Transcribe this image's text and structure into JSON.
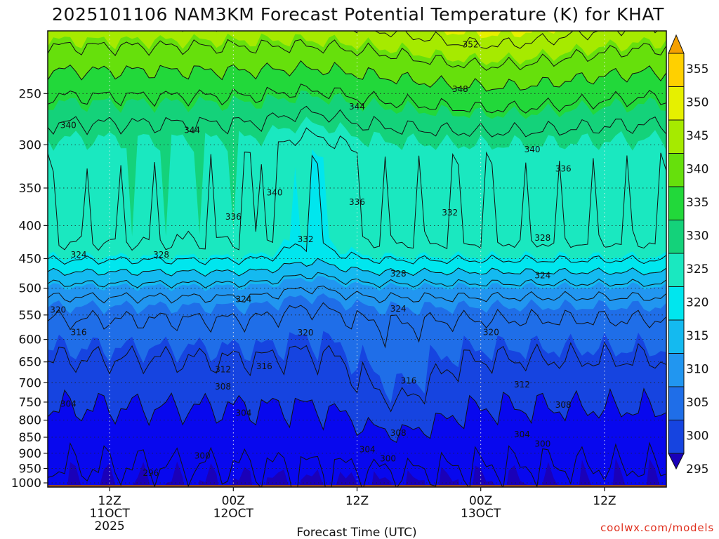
{
  "chart_data": {
    "type": "heatmap",
    "title": "2025101106 NAM3KM Forecast Potential Temperature (K) for KHAT",
    "xlabel": "Forecast Time (UTC)",
    "ylabel": "",
    "units": "K",
    "credit": "coolwx.com/models",
    "model_run": "2025101106",
    "x_ticks": [
      {
        "hour": 6,
        "label": "12Z",
        "sub": "11OCT",
        "sub2": "2025"
      },
      {
        "hour": 18,
        "label": "00Z",
        "sub": "12OCT",
        "sub2": ""
      },
      {
        "hour": 30,
        "label": "12Z",
        "sub": "",
        "sub2": ""
      },
      {
        "hour": 42,
        "label": "00Z",
        "sub": "13OCT",
        "sub2": ""
      },
      {
        "hour": 54,
        "label": "12Z",
        "sub": "",
        "sub2": ""
      }
    ],
    "xlim": [
      0,
      60
    ],
    "y_scale": "log-pressure (hPa), inverted",
    "y_ticks": [
      250,
      300,
      350,
      400,
      450,
      500,
      550,
      600,
      650,
      700,
      750,
      800,
      850,
      900,
      950,
      1000
    ],
    "ylim": [
      1015,
      200
    ],
    "colorbar": {
      "levels": [
        290,
        295,
        300,
        305,
        310,
        315,
        320,
        325,
        330,
        335,
        340,
        345,
        350,
        355,
        360
      ],
      "labels": [
        295,
        300,
        305,
        310,
        315,
        320,
        325,
        330,
        335,
        340,
        345,
        350,
        355
      ],
      "colors": [
        "#1a00b8",
        "#0808ee",
        "#1644e0",
        "#1f6ee8",
        "#2196f0",
        "#14baf0",
        "#00e6ee",
        "#1ae8c0",
        "#14d27a",
        "#22d83a",
        "#66e00c",
        "#a6ea00",
        "#e6f000",
        "#ffd000",
        "#f5a000"
      ]
    },
    "grid": "dotted at x and y ticks",
    "contour_interval": 4,
    "contour_labels": [
      {
        "hour": 2,
        "p": 280,
        "v": 340
      },
      {
        "hour": 14,
        "p": 285,
        "v": 344
      },
      {
        "hour": 41,
        "p": 210,
        "v": 352
      },
      {
        "hour": 40,
        "p": 246,
        "v": 348
      },
      {
        "hour": 30,
        "p": 262,
        "v": 344
      },
      {
        "hour": 47,
        "p": 305,
        "v": 340
      },
      {
        "hour": 50,
        "p": 327,
        "v": 336
      },
      {
        "hour": 22,
        "p": 356,
        "v": 340
      },
      {
        "hour": 30,
        "p": 368,
        "v": 336
      },
      {
        "hour": 39,
        "p": 382,
        "v": 332
      },
      {
        "hour": 18,
        "p": 388,
        "v": 336
      },
      {
        "hour": 25,
        "p": 420,
        "v": 332
      },
      {
        "hour": 48,
        "p": 418,
        "v": 328
      },
      {
        "hour": 3,
        "p": 444,
        "v": 324
      },
      {
        "hour": 11,
        "p": 444,
        "v": 328
      },
      {
        "hour": 34,
        "p": 475,
        "v": 328
      },
      {
        "hour": 48,
        "p": 478,
        "v": 324
      },
      {
        "hour": 19,
        "p": 520,
        "v": 324
      },
      {
        "hour": 34,
        "p": 538,
        "v": 324
      },
      {
        "hour": 1,
        "p": 540,
        "v": 320
      },
      {
        "hour": 3,
        "p": 585,
        "v": 316
      },
      {
        "hour": 25,
        "p": 586,
        "v": 320
      },
      {
        "hour": 43,
        "p": 585,
        "v": 320
      },
      {
        "hour": 17,
        "p": 668,
        "v": 312
      },
      {
        "hour": 21,
        "p": 660,
        "v": 316
      },
      {
        "hour": 35,
        "p": 695,
        "v": 316
      },
      {
        "hour": 46,
        "p": 705,
        "v": 312
      },
      {
        "hour": 17,
        "p": 710,
        "v": 308
      },
      {
        "hour": 2,
        "p": 755,
        "v": 304
      },
      {
        "hour": 19,
        "p": 780,
        "v": 304
      },
      {
        "hour": 50,
        "p": 758,
        "v": 308
      },
      {
        "hour": 34,
        "p": 837,
        "v": 308
      },
      {
        "hour": 46,
        "p": 842,
        "v": 304
      },
      {
        "hour": 48,
        "p": 870,
        "v": 300
      },
      {
        "hour": 31,
        "p": 888,
        "v": 304
      },
      {
        "hour": 33,
        "p": 917,
        "v": 300
      },
      {
        "hour": 15,
        "p": 908,
        "v": 300
      },
      {
        "hour": 10,
        "p": 965,
        "v": 296
      }
    ]
  }
}
